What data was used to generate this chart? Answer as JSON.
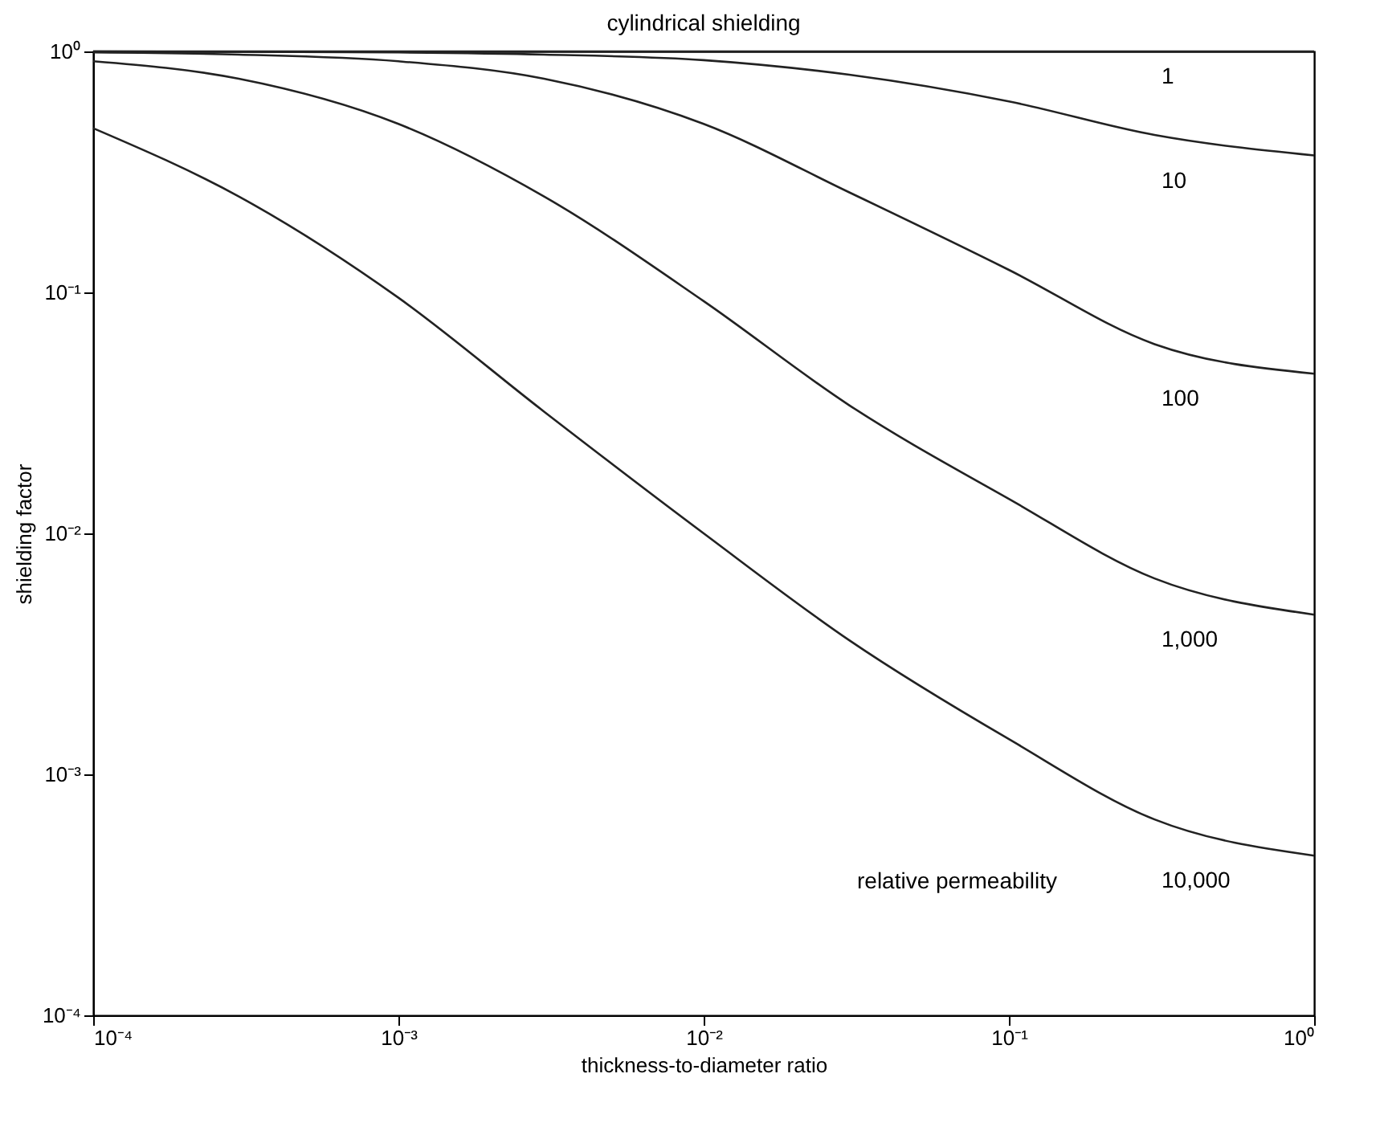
{
  "chart_data": {
    "type": "line",
    "title": "cylindrical shielding",
    "xlabel": "thickness-to-diameter ratio",
    "ylabel": "shielding factor",
    "x": [
      0.0001,
      0.0003,
      0.001,
      0.003,
      0.01,
      0.03,
      0.1,
      0.3,
      1
    ],
    "series": [
      {
        "name": "1",
        "color": "#222222",
        "values": [
          1,
          1,
          1,
          1,
          1,
          1,
          1,
          1,
          1
        ]
      },
      {
        "name": "10",
        "color": "#222222",
        "values": [
          0.999,
          0.997,
          0.99,
          0.97,
          0.92,
          0.8,
          0.62,
          0.45,
          0.37
        ]
      },
      {
        "name": "100",
        "color": "#222222",
        "values": [
          0.99,
          0.97,
          0.91,
          0.77,
          0.5,
          0.26,
          0.124,
          0.061,
          0.046
        ]
      },
      {
        "name": "1,000",
        "color": "#222222",
        "values": [
          0.91,
          0.77,
          0.5,
          0.25,
          0.092,
          0.034,
          0.0139,
          0.0065,
          0.0046
        ]
      },
      {
        "name": "10,000",
        "color": "#222222",
        "values": [
          0.48,
          0.25,
          0.095,
          0.032,
          0.01,
          0.0036,
          0.0014,
          0.00065,
          0.00046
        ]
      }
    ],
    "annotations": [
      "relative permeability"
    ],
    "log": "xy",
    "grid": false,
    "legend": false,
    "line_style": "solid",
    "xlim": [
      0.0001,
      1
    ],
    "ylim": [
      0.0001,
      1
    ],
    "xticks": [
      {
        "value": 0.0001,
        "label": "10⁻⁴"
      },
      {
        "value": 0.001,
        "label": "10⁻³"
      },
      {
        "value": 0.01,
        "label": "10⁻²"
      },
      {
        "value": 0.1,
        "label": "10⁻¹"
      },
      {
        "value": 1,
        "label": "10⁰"
      }
    ],
    "yticks": [
      {
        "value": 0.0001,
        "label": "10⁻⁴"
      },
      {
        "value": 0.001,
        "label": "10⁻³"
      },
      {
        "value": 0.01,
        "label": "10⁻²"
      },
      {
        "value": 0.1,
        "label": "10⁻¹"
      },
      {
        "value": 1,
        "label": "10⁰"
      }
    ]
  }
}
